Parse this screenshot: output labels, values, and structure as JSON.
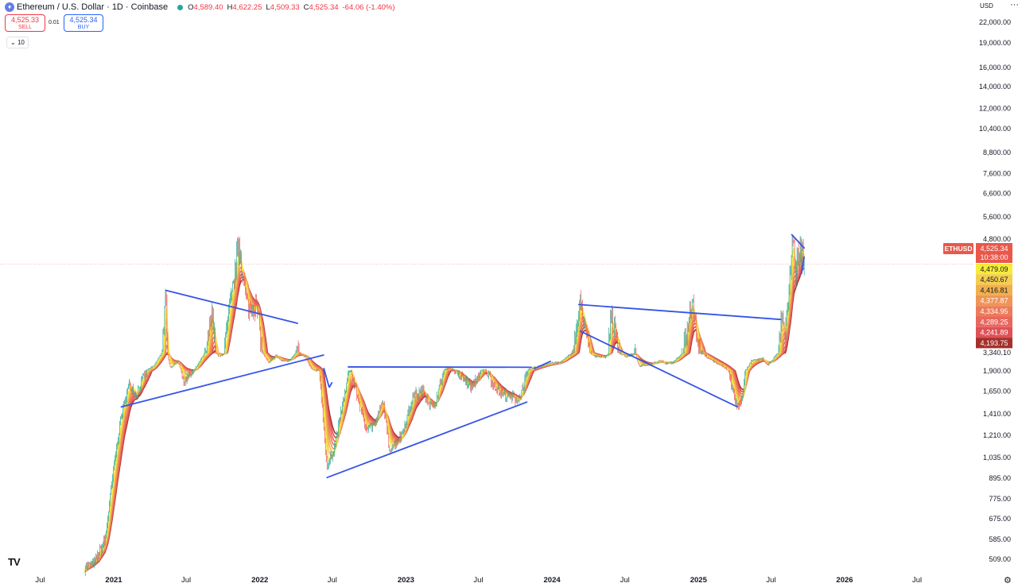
{
  "header": {
    "symbol_icon": "ethereum-icon",
    "title": "Ethereum / U.S. Dollar · 1D · Coinbase",
    "open_label": "O",
    "open": "4,589.40",
    "high_label": "H",
    "high": "4,622.25",
    "low_label": "L",
    "low": "4,509.33",
    "close_label": "C",
    "close": "4,525.34",
    "change": "-64.06 (-1.40%)"
  },
  "trade": {
    "sell_price": "4,525.33",
    "sell_label": "SELL",
    "spread": "0.01",
    "buy_price": "4,525.34",
    "buy_label": "BUY"
  },
  "indicator_toggle": "10",
  "currency": "USD",
  "menu_icon": "more-horizontal-icon",
  "logo": "TV",
  "settings_icon": "gear-icon",
  "chart_data": {
    "type": "line",
    "title": "Ethereum / U.S. Dollar · 1D · Coinbase",
    "xlabel": "",
    "ylabel": "",
    "y_scale": "log",
    "grid": false,
    "ylim": [
      470,
      26000
    ],
    "x_ticks": [
      "Jul",
      "2021",
      "Jul",
      "2022",
      "Jul",
      "2023",
      "Jul",
      "2024",
      "Jul",
      "2025",
      "Jul",
      "2026",
      "Jul"
    ],
    "x_tick_dates": [
      "2020-07-01",
      "2021-01-01",
      "2021-07-01",
      "2022-01-01",
      "2022-07-01",
      "2023-01-01",
      "2023-07-01",
      "2024-01-01",
      "2024-07-01",
      "2025-01-01",
      "2025-07-01",
      "2026-01-01",
      "2026-07-01"
    ],
    "y_ticks": [
      {
        "value": 22000,
        "label": "22,000.00"
      },
      {
        "value": 19000,
        "label": "19,000.00"
      },
      {
        "value": 16000,
        "label": "16,000.00"
      },
      {
        "value": 14000,
        "label": "14,000.00"
      },
      {
        "value": 12000,
        "label": "12,000.00"
      },
      {
        "value": 10400,
        "label": "10,400.00"
      },
      {
        "value": 8800,
        "label": "8,800.00"
      },
      {
        "value": 7600,
        "label": "7,600.00"
      },
      {
        "value": 6600,
        "label": "6,600.00"
      },
      {
        "value": 5600,
        "label": "5,600.00"
      },
      {
        "value": 4800,
        "label": "4,800.00"
      },
      {
        "value": 3340.1,
        "label": "3,340.10"
      },
      {
        "value": 1900,
        "label": "1,900.00"
      },
      {
        "value": 1650,
        "label": "1,650.00"
      },
      {
        "value": 1410,
        "label": "1,410.00"
      },
      {
        "value": 1210,
        "label": "1,210.00"
      },
      {
        "value": 1035,
        "label": "1,035.00"
      },
      {
        "value": 895,
        "label": "895.00"
      },
      {
        "value": 775,
        "label": "775.00"
      },
      {
        "value": 675,
        "label": "675.00"
      },
      {
        "value": 585,
        "label": "585.00"
      },
      {
        "value": 509,
        "label": "509.00"
      }
    ],
    "price_series": {
      "name": "ETHUSD",
      "points": [
        [
          "2020-10-20",
          480
        ],
        [
          "2020-11-15",
          500
        ],
        [
          "2020-12-10",
          580
        ],
        [
          "2021-01-05",
          1050
        ],
        [
          "2021-01-20",
          1400
        ],
        [
          "2021-02-10",
          1750
        ],
        [
          "2021-02-25",
          1600
        ],
        [
          "2021-03-15",
          1800
        ],
        [
          "2021-04-10",
          2150
        ],
        [
          "2021-05-11",
          4100
        ],
        [
          "2021-05-23",
          2100
        ],
        [
          "2021-06-10",
          2550
        ],
        [
          "2021-06-22",
          1750
        ],
        [
          "2021-07-20",
          1900
        ],
        [
          "2021-08-15",
          3200
        ],
        [
          "2021-09-03",
          3900
        ],
        [
          "2021-09-21",
          2900
        ],
        [
          "2021-10-15",
          3800
        ],
        [
          "2021-11-10",
          4800
        ],
        [
          "2021-11-26",
          4100
        ],
        [
          "2021-12-04",
          3900
        ],
        [
          "2021-12-25",
          3950
        ],
        [
          "2022-01-10",
          3200
        ],
        [
          "2022-01-24",
          2400
        ],
        [
          "2022-02-10",
          3100
        ],
        [
          "2022-02-24",
          2600
        ],
        [
          "2022-03-15",
          2600
        ],
        [
          "2022-04-02",
          3450
        ],
        [
          "2022-04-25",
          2900
        ],
        [
          "2022-05-12",
          1950
        ],
        [
          "2022-05-30",
          1900
        ],
        [
          "2022-06-18",
          960
        ],
        [
          "2022-07-05",
          1100
        ],
        [
          "2022-08-14",
          1960
        ],
        [
          "2022-09-20",
          1300
        ],
        [
          "2022-10-15",
          1300
        ],
        [
          "2022-11-05",
          1550
        ],
        [
          "2022-11-21",
          1100
        ],
        [
          "2022-12-20",
          1200
        ],
        [
          "2023-01-20",
          1600
        ],
        [
          "2023-02-15",
          1650
        ],
        [
          "2023-03-10",
          1450
        ],
        [
          "2023-04-16",
          2100
        ],
        [
          "2023-05-10",
          1850
        ],
        [
          "2023-06-15",
          1700
        ],
        [
          "2023-07-15",
          1950
        ],
        [
          "2023-08-20",
          1650
        ],
        [
          "2023-09-10",
          1600
        ],
        [
          "2023-10-10",
          1550
        ],
        [
          "2023-11-10",
          2050
        ],
        [
          "2023-12-28",
          2400
        ],
        [
          "2024-01-20",
          2450
        ],
        [
          "2024-03-12",
          4000
        ],
        [
          "2024-04-15",
          3000
        ],
        [
          "2024-05-15",
          2950
        ],
        [
          "2024-05-27",
          3850
        ],
        [
          "2024-07-05",
          2950
        ],
        [
          "2024-07-28",
          3300
        ],
        [
          "2024-08-05",
          2200
        ],
        [
          "2024-09-05",
          2350
        ],
        [
          "2024-09-27",
          2650
        ],
        [
          "2024-10-10",
          2400
        ],
        [
          "2024-11-01",
          2500
        ],
        [
          "2024-11-20",
          3250
        ],
        [
          "2024-12-16",
          4050
        ],
        [
          "2024-12-31",
          3350
        ],
        [
          "2025-01-10",
          3250
        ],
        [
          "2025-02-03",
          2650
        ],
        [
          "2025-03-10",
          2050
        ],
        [
          "2025-04-09",
          1450
        ],
        [
          "2025-04-20",
          1600
        ],
        [
          "2025-05-13",
          2550
        ],
        [
          "2025-06-10",
          2800
        ],
        [
          "2025-06-22",
          2250
        ],
        [
          "2025-07-10",
          2900
        ],
        [
          "2025-07-28",
          3800
        ],
        [
          "2025-08-05",
          3550
        ],
        [
          "2025-08-24",
          4850
        ],
        [
          "2025-08-31",
          4400
        ],
        [
          "2025-09-13",
          4750
        ],
        [
          "2025-09-22",
          4525
        ]
      ]
    },
    "moving_average_ribbon_levels": [
      "4,479.09",
      "4,450.67",
      "4,416.81",
      "4,377.87",
      "4,334.95",
      "4,289.25",
      "4,241.89",
      "4,193.75"
    ],
    "ribbon_colors": [
      "#f5ec3a",
      "#f5cd4f",
      "#f0b04e",
      "#ee9557",
      "#ec7b5a",
      "#e8675e",
      "#df5156",
      "#a5312c"
    ],
    "last_price_label": "ETHUSD",
    "last_price": 4525.34,
    "last_price_text": "4,525.34",
    "countdown": "10:38:00",
    "last_price_color": "#e8584b",
    "trendline_color": "#3554e8",
    "trendlines": [
      [
        [
          "2021-05-12",
          4150
        ],
        [
          "2022-04-05",
          3700
        ]
      ],
      [
        [
          "2021-01-20",
          1480
        ],
        [
          "2022-06-09",
          3100
        ]
      ],
      [
        [
          "2022-06-10",
          2050
        ],
        [
          "2022-06-23",
          1700
        ]
      ],
      [
        [
          "2022-06-24",
          1700
        ],
        [
          "2022-06-30",
          1750
        ]
      ],
      [
        [
          "2022-06-18",
          900
        ],
        [
          "2023-10-30",
          1530
        ]
      ],
      [
        [
          "2022-08-10",
          2150
        ],
        [
          "2023-11-10",
          2130
        ]
      ],
      [
        [
          "2023-11-18",
          2050
        ],
        [
          "2023-12-28",
          2550
        ]
      ],
      [
        [
          "2024-03-08",
          3950
        ],
        [
          "2025-07-25",
          3750
        ]
      ],
      [
        [
          "2024-03-12",
          3600
        ],
        [
          "2025-04-08",
          1480
        ]
      ],
      [
        [
          "2025-08-22",
          4950
        ],
        [
          "2025-09-22",
          4700
        ]
      ],
      [
        [
          "2025-09-15",
          4400
        ],
        [
          "2025-09-22",
          4600
        ]
      ]
    ]
  }
}
